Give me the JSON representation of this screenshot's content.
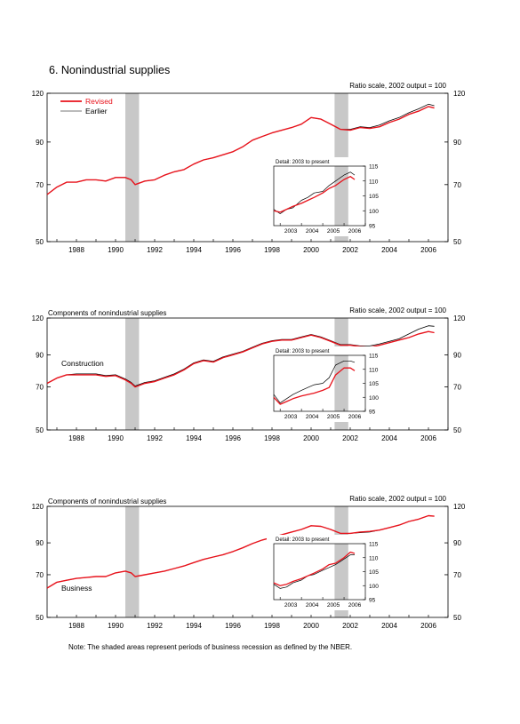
{
  "title": "6. Nonindustrial supplies",
  "note": "Note: The shaded areas represent periods of business recession as defined by the NBER.",
  "legend": {
    "revised": "Revised",
    "earlier": "Earlier"
  },
  "colors": {
    "revised": "#e8121b",
    "earlier": "#000000",
    "recession": "#c8c8c8",
    "axis": "#000000"
  },
  "recessions": [
    [
      1990.5,
      1991.2
    ],
    [
      2001.2,
      2001.9
    ]
  ],
  "chart_data": [
    {
      "type": "line",
      "subtitle": "",
      "scale_note": "Ratio scale, 2002 output = 100",
      "label": "",
      "log_scale": true,
      "xlim": [
        1986.5,
        2007.0
      ],
      "ylim": [
        50,
        120
      ],
      "yticks": [
        50,
        70,
        90,
        120
      ],
      "xticks": [
        1988,
        1990,
        1992,
        1994,
        1996,
        1998,
        2000,
        2002,
        2004,
        2006
      ],
      "x": [
        1986.5,
        1987.0,
        1987.5,
        1988.0,
        1988.5,
        1989.0,
        1989.5,
        1990.0,
        1990.5,
        1990.8,
        1991.0,
        1991.5,
        1992.0,
        1992.5,
        1993.0,
        1993.5,
        1994.0,
        1994.5,
        1995.0,
        1995.5,
        1996.0,
        1996.5,
        1997.0,
        1997.5,
        1998.0,
        1998.5,
        1999.0,
        1999.5,
        2000.0,
        2000.5,
        2001.0,
        2001.5,
        2002.0,
        2002.5,
        2003.0,
        2003.5,
        2004.0,
        2004.5,
        2005.0,
        2005.5,
        2006.0,
        2006.3
      ],
      "series": [
        {
          "name": "Revised",
          "values": [
            66,
            69,
            71,
            71,
            72,
            72,
            71.5,
            73,
            73,
            72,
            70,
            71.5,
            72,
            74,
            75.5,
            76.5,
            79,
            81,
            82,
            83.5,
            85,
            87.5,
            91,
            93,
            95,
            96.5,
            98,
            100,
            104,
            103,
            100,
            97,
            96.5,
            98,
            97.5,
            98.5,
            101,
            103,
            106,
            108,
            111,
            110
          ]
        },
        {
          "name": "Earlier",
          "values": [
            66,
            69,
            71,
            71,
            72,
            72,
            71.5,
            73,
            73,
            72,
            70,
            71.5,
            72,
            74,
            75.5,
            76.5,
            79,
            81,
            82,
            83.5,
            85,
            87.5,
            91,
            93,
            95,
            96.5,
            98,
            100,
            104,
            103,
            100,
            97,
            97,
            98.5,
            98,
            99.5,
            102,
            104,
            107,
            109.5,
            112.5,
            111.5
          ]
        }
      ],
      "detail": {
        "title": "Detail: 2003 to present",
        "xlim": [
          2002.7,
          2007.0
        ],
        "ylim": [
          95,
          115
        ],
        "yticks": [
          95,
          100,
          105,
          110,
          115
        ],
        "xticks": [
          2003,
          2004,
          2005,
          2006
        ],
        "x": [
          2002.7,
          2003.0,
          2003.3,
          2003.6,
          2004.0,
          2004.3,
          2004.6,
          2005.0,
          2005.3,
          2005.6,
          2006.0,
          2006.3,
          2006.5
        ],
        "series": [
          {
            "name": "Revised",
            "values": [
              100,
              99.5,
              100.5,
              101.5,
              102.5,
              103.5,
              104.5,
              106,
              107.5,
              108.5,
              110.5,
              111.5,
              110.5
            ]
          },
          {
            "name": "Earlier",
            "values": [
              100.5,
              99,
              100.5,
              101,
              103.5,
              104.5,
              106,
              106.5,
              108.5,
              110,
              112,
              113,
              112
            ]
          }
        ]
      }
    },
    {
      "type": "line",
      "subtitle": "Components of nonindustrial supplies",
      "scale_note": "Ratio scale, 2002 output = 100",
      "label": "Construction",
      "log_scale": true,
      "xlim": [
        1986.5,
        2007.0
      ],
      "ylim": [
        50,
        120
      ],
      "yticks": [
        50,
        70,
        90,
        120
      ],
      "xticks": [
        1988,
        1990,
        1992,
        1994,
        1996,
        1998,
        2000,
        2002,
        2004,
        2006
      ],
      "x": [
        1986.5,
        1987.0,
        1987.5,
        1988.0,
        1988.5,
        1989.0,
        1989.5,
        1990.0,
        1990.5,
        1990.8,
        1991.0,
        1991.5,
        1992.0,
        1992.5,
        1993.0,
        1993.5,
        1994.0,
        1994.5,
        1995.0,
        1995.5,
        1996.0,
        1996.5,
        1997.0,
        1997.5,
        1998.0,
        1998.5,
        1999.0,
        1999.5,
        2000.0,
        2000.5,
        2001.0,
        2001.5,
        2002.0,
        2002.5,
        2003.0,
        2003.5,
        2004.0,
        2004.5,
        2005.0,
        2005.5,
        2006.0,
        2006.3
      ],
      "series": [
        {
          "name": "Revised",
          "values": [
            72,
            75,
            77,
            77,
            77,
            77,
            76,
            76.5,
            74,
            72,
            70,
            72,
            73,
            75,
            77,
            80,
            84,
            86,
            85,
            88,
            90,
            92,
            95,
            98,
            100,
            101,
            101,
            103,
            105,
            103,
            100,
            97,
            97,
            96,
            95.5,
            97,
            99,
            101,
            103,
            106,
            108,
            107
          ]
        },
        {
          "name": "Earlier",
          "values": [
            72,
            75,
            77,
            77.5,
            77.5,
            77.5,
            76.5,
            77,
            74.5,
            72.5,
            70.5,
            72.5,
            73.5,
            75.5,
            77.5,
            80.5,
            84.5,
            86.5,
            85.5,
            88.5,
            90.5,
            92.5,
            95.5,
            98.5,
            100.5,
            101.5,
            101.5,
            103.5,
            105.5,
            103.5,
            100.5,
            97.5,
            97.5,
            96.5,
            96.5,
            98,
            100,
            102,
            106,
            110,
            113,
            112.5
          ]
        }
      ],
      "detail": {
        "title": "Detail: 2003 to present",
        "xlim": [
          2002.7,
          2007.0
        ],
        "ylim": [
          95,
          115
        ],
        "yticks": [
          95,
          100,
          105,
          110,
          115
        ],
        "xticks": [
          2003,
          2004,
          2005,
          2006
        ],
        "x": [
          2002.7,
          2003.0,
          2003.3,
          2003.6,
          2004.0,
          2004.3,
          2004.6,
          2005.0,
          2005.3,
          2005.6,
          2006.0,
          2006.3,
          2006.5
        ],
        "series": [
          {
            "name": "Revised",
            "values": [
              100,
              97.5,
              98.5,
              99.5,
              100.5,
              101,
              101.5,
              102.5,
              103.5,
              108,
              110.5,
              110.5,
              109.5
            ]
          },
          {
            "name": "Earlier",
            "values": [
              101,
              98,
              99.5,
              101,
              102.5,
              103.5,
              104.5,
              105,
              107,
              111.5,
              113,
              113,
              112.5
            ]
          }
        ]
      }
    },
    {
      "type": "line",
      "subtitle": "Components of nonindustrial supplies",
      "scale_note": "Ratio scale, 2002 output = 100",
      "label": "Business",
      "log_scale": true,
      "xlim": [
        1986.5,
        2007.0
      ],
      "ylim": [
        50,
        120
      ],
      "yticks": [
        50,
        70,
        90,
        120
      ],
      "xticks": [
        1988,
        1990,
        1992,
        1994,
        1996,
        1998,
        2000,
        2002,
        2004,
        2006
      ],
      "x": [
        1986.5,
        1987.0,
        1987.5,
        1988.0,
        1988.5,
        1989.0,
        1989.5,
        1990.0,
        1990.5,
        1990.8,
        1991.0,
        1991.5,
        1992.0,
        1992.5,
        1993.0,
        1993.5,
        1994.0,
        1994.5,
        1995.0,
        1995.5,
        1996.0,
        1996.5,
        1997.0,
        1997.5,
        1998.0,
        1998.5,
        1999.0,
        1999.5,
        2000.0,
        2000.5,
        2001.0,
        2001.5,
        2002.0,
        2002.5,
        2003.0,
        2003.5,
        2004.0,
        2004.5,
        2005.0,
        2005.5,
        2006.0,
        2006.3
      ],
      "series": [
        {
          "name": "Revised",
          "values": [
            63,
            66,
            67,
            68,
            68.5,
            69,
            69,
            71,
            72,
            71,
            69,
            70,
            71,
            72,
            73.5,
            75,
            77,
            79,
            80.5,
            82,
            84,
            86.5,
            89.5,
            92,
            94,
            96,
            98,
            100,
            103,
            102.5,
            100,
            97,
            97,
            98,
            98.5,
            99.5,
            101.5,
            103.5,
            106.5,
            108.5,
            111.5,
            111
          ]
        },
        {
          "name": "Earlier",
          "values": [
            63,
            66,
            67,
            68,
            68.5,
            69,
            69,
            71,
            72,
            71,
            69,
            70,
            71,
            72,
            73.5,
            75,
            77,
            79,
            80.5,
            82,
            84,
            86.5,
            89.5,
            92,
            94,
            96,
            98,
            100,
            103,
            102.5,
            100,
            97,
            97,
            97.5,
            98,
            99.5,
            101.5,
            103.5,
            106.5,
            108.5,
            111.5,
            111
          ]
        }
      ],
      "detail": {
        "title": "Detail: 2003 to present",
        "xlim": [
          2002.7,
          2007.0
        ],
        "ylim": [
          95,
          115
        ],
        "yticks": [
          95,
          100,
          105,
          110,
          115
        ],
        "xticks": [
          2003,
          2004,
          2005,
          2006
        ],
        "x": [
          2002.7,
          2003.0,
          2003.3,
          2003.6,
          2004.0,
          2004.3,
          2004.6,
          2005.0,
          2005.3,
          2005.6,
          2006.0,
          2006.3,
          2006.5
        ],
        "series": [
          {
            "name": "Revised",
            "values": [
              101,
              100,
              100.5,
              101.5,
              102.5,
              103.5,
              104.5,
              106,
              107.5,
              108,
              110,
              112,
              111.5
            ]
          },
          {
            "name": "Earlier",
            "values": [
              100.5,
              99,
              99.5,
              101,
              102,
              103.5,
              104,
              105.5,
              106.5,
              107.5,
              109.5,
              111,
              111
            ]
          }
        ]
      }
    }
  ]
}
